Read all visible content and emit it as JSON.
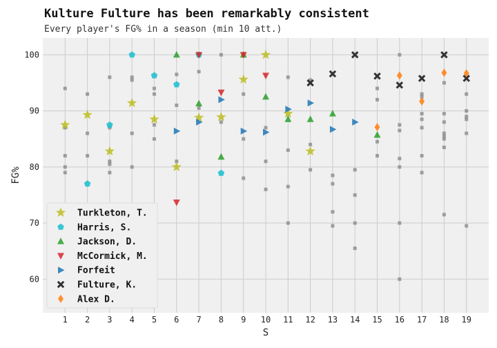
{
  "chart_data": {
    "type": "scatter",
    "title": "Kulture Fulture has been remarkably consistent",
    "subtitle": "Every player's FG% in a season (min 10 att.)",
    "xlabel": "S",
    "ylabel": "FG%",
    "xticks": [
      1,
      2,
      3,
      4,
      5,
      6,
      7,
      8,
      9,
      10,
      11,
      12,
      13,
      14,
      15,
      16,
      17,
      18,
      19
    ],
    "yticks": [
      60,
      70,
      80,
      90,
      100
    ],
    "xlim": [
      0.0,
      20.0
    ],
    "ylim": [
      54,
      103
    ],
    "grid": true,
    "legend_position": "lower-left",
    "background": [
      [
        1,
        94
      ],
      [
        1,
        87
      ],
      [
        1,
        82
      ],
      [
        1,
        80
      ],
      [
        1,
        79
      ],
      [
        1,
        56
      ],
      [
        2,
        93
      ],
      [
        2,
        86
      ],
      [
        2,
        82
      ],
      [
        3,
        96
      ],
      [
        3,
        87
      ],
      [
        3,
        81
      ],
      [
        3,
        80.5
      ],
      [
        3,
        79
      ],
      [
        4,
        96
      ],
      [
        4,
        95.5
      ],
      [
        4,
        86
      ],
      [
        4,
        80
      ],
      [
        5,
        94
      ],
      [
        5,
        93
      ],
      [
        5,
        87.5
      ],
      [
        5,
        85
      ],
      [
        6,
        96.5
      ],
      [
        6,
        91
      ],
      [
        6,
        81
      ],
      [
        7,
        100
      ],
      [
        7,
        97
      ],
      [
        7,
        90.5
      ],
      [
        8,
        100
      ],
      [
        8,
        88
      ],
      [
        9,
        100
      ],
      [
        9,
        93
      ],
      [
        9,
        85
      ],
      [
        9,
        78
      ],
      [
        10,
        87
      ],
      [
        10,
        81
      ],
      [
        10,
        76
      ],
      [
        11,
        96
      ],
      [
        11,
        83
      ],
      [
        11,
        76.5
      ],
      [
        11,
        70
      ],
      [
        12,
        95.5
      ],
      [
        12,
        84
      ],
      [
        12,
        79.5
      ],
      [
        13,
        78.5
      ],
      [
        13,
        77
      ],
      [
        13,
        72
      ],
      [
        13,
        69.5
      ],
      [
        14,
        79.5
      ],
      [
        14,
        75
      ],
      [
        14,
        70
      ],
      [
        14,
        65.5
      ],
      [
        15,
        94
      ],
      [
        15,
        92
      ],
      [
        15,
        84.5
      ],
      [
        15,
        82
      ],
      [
        16,
        100
      ],
      [
        16,
        87.5
      ],
      [
        16,
        86.5
      ],
      [
        16,
        81.5
      ],
      [
        16,
        80
      ],
      [
        16,
        70
      ],
      [
        16,
        60
      ],
      [
        17,
        93
      ],
      [
        17,
        92.5
      ],
      [
        17,
        89.5
      ],
      [
        17,
        88.5
      ],
      [
        17,
        87
      ],
      [
        17,
        82
      ],
      [
        17,
        79
      ],
      [
        18,
        95
      ],
      [
        18,
        89.5
      ],
      [
        18,
        88
      ],
      [
        18,
        86
      ],
      [
        18,
        85.5
      ],
      [
        18,
        85
      ],
      [
        18,
        83.5
      ],
      [
        18,
        71.5
      ],
      [
        19,
        93
      ],
      [
        19,
        90
      ],
      [
        19,
        89
      ],
      [
        19,
        88.5
      ],
      [
        19,
        86
      ],
      [
        19,
        69.5
      ]
    ],
    "series": [
      {
        "name": "Turkleton, T.",
        "marker": "star",
        "color": "#bcbd22",
        "points": [
          [
            1,
            87.5
          ],
          [
            2,
            89.3
          ],
          [
            3,
            82.8
          ],
          [
            4,
            91.4
          ],
          [
            5,
            88.5
          ],
          [
            6,
            80
          ],
          [
            7,
            88.8
          ],
          [
            8,
            88.9
          ],
          [
            9,
            95.6
          ],
          [
            10,
            100
          ],
          [
            11,
            89.5
          ],
          [
            12,
            82.8
          ]
        ]
      },
      {
        "name": "Harris, S.",
        "marker": "pentagon",
        "color": "#17becf",
        "points": [
          [
            2,
            77
          ],
          [
            3,
            87.5
          ],
          [
            4,
            100
          ],
          [
            5,
            96.3
          ],
          [
            6,
            94.7
          ],
          [
            7,
            100
          ],
          [
            8,
            78.9
          ]
        ]
      },
      {
        "name": "Jackson, D.",
        "marker": "triangle-up",
        "color": "#2ca02c",
        "points": [
          [
            6,
            100
          ],
          [
            7,
            91.3
          ],
          [
            8,
            81.8
          ],
          [
            9,
            100
          ],
          [
            10,
            92.5
          ],
          [
            11,
            88.5
          ],
          [
            12,
            88.5
          ],
          [
            13,
            89.5
          ],
          [
            15,
            85.7
          ]
        ]
      },
      {
        "name": "McCormick, M.",
        "marker": "triangle-down",
        "color": "#d62728",
        "points": [
          [
            6,
            73.7
          ],
          [
            7,
            100
          ],
          [
            8,
            93.3
          ],
          [
            9,
            100
          ],
          [
            10,
            96.3
          ]
        ]
      },
      {
        "name": "Forfeit",
        "marker": "triangle-right",
        "color": "#1f77b4",
        "points": [
          [
            6,
            86.4
          ],
          [
            7,
            88
          ],
          [
            8,
            92
          ],
          [
            9,
            86.4
          ],
          [
            10,
            86.2
          ],
          [
            11,
            90.3
          ],
          [
            12,
            91.4
          ],
          [
            13,
            86.7
          ],
          [
            14,
            88
          ]
        ]
      },
      {
        "name": "Fulture, K.",
        "marker": "x",
        "color": "#333333",
        "points": [
          [
            12,
            95
          ],
          [
            13,
            96.6
          ],
          [
            14,
            100
          ],
          [
            15,
            96.2
          ],
          [
            16,
            94.6
          ],
          [
            17,
            95.8
          ],
          [
            18,
            100
          ],
          [
            19,
            95.8
          ]
        ]
      },
      {
        "name": "Alex D.",
        "marker": "diamond",
        "color": "#ff7f0e",
        "points": [
          [
            15,
            87.1
          ],
          [
            16,
            96.3
          ],
          [
            17,
            91.7
          ],
          [
            18,
            96.8
          ],
          [
            19,
            96.7
          ]
        ]
      }
    ]
  }
}
